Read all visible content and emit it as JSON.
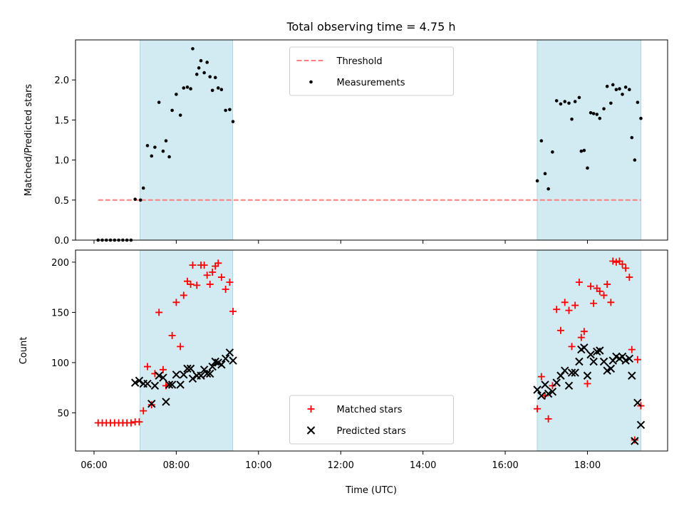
{
  "figure": {
    "title": "Total observing time = 4.75 h",
    "xlabel": "Time (UTC)",
    "xticks": [
      {
        "value": 6,
        "label": "06:00"
      },
      {
        "value": 8,
        "label": "08:00"
      },
      {
        "value": 10,
        "label": "10:00"
      },
      {
        "value": 12,
        "label": "12:00"
      },
      {
        "value": 14,
        "label": "14:00"
      },
      {
        "value": 16,
        "label": "16:00"
      },
      {
        "value": 18,
        "label": "18:00"
      }
    ],
    "xlim": [
      5.55,
      19.95
    ],
    "shaded_intervals": [
      [
        7.12,
        9.37
      ],
      [
        16.78,
        19.3
      ]
    ],
    "shade_color": "#add8e6"
  },
  "chart_data": [
    {
      "type": "scatter",
      "ylabel": "Matched/Predicted stars",
      "ylim": [
        0,
        2.5
      ],
      "yticks": [
        {
          "value": 0,
          "label": "0.0"
        },
        {
          "value": 0.5,
          "label": "0.5"
        },
        {
          "value": 1,
          "label": "1.0"
        },
        {
          "value": 1.5,
          "label": "1.5"
        },
        {
          "value": 2,
          "label": "2.0"
        }
      ],
      "legend_position": "top-center",
      "threshold": {
        "name": "Threshold",
        "value": 0.5,
        "x": [
          6.1,
          19.3
        ],
        "color": "#ff7f7f"
      },
      "series": [
        {
          "name": "Measurements",
          "color": "#000000",
          "marker": "dot",
          "points": [
            [
              6.1,
              0
            ],
            [
              6.2,
              0
            ],
            [
              6.3,
              0
            ],
            [
              6.4,
              0
            ],
            [
              6.5,
              0
            ],
            [
              6.6,
              0
            ],
            [
              6.7,
              0
            ],
            [
              6.8,
              0
            ],
            [
              6.9,
              0
            ],
            [
              7.0,
              0.51
            ],
            [
              7.13,
              0.5
            ],
            [
              7.2,
              0.65
            ],
            [
              7.3,
              1.18
            ],
            [
              7.4,
              1.05
            ],
            [
              7.48,
              1.16
            ],
            [
              7.58,
              1.72
            ],
            [
              7.68,
              1.11
            ],
            [
              7.75,
              1.24
            ],
            [
              7.83,
              1.04
            ],
            [
              7.9,
              1.62
            ],
            [
              8.0,
              1.82
            ],
            [
              8.1,
              1.56
            ],
            [
              8.18,
              1.9
            ],
            [
              8.27,
              1.91
            ],
            [
              8.35,
              1.89
            ],
            [
              8.4,
              2.39
            ],
            [
              8.5,
              2.07
            ],
            [
              8.55,
              2.15
            ],
            [
              8.6,
              2.24
            ],
            [
              8.68,
              2.09
            ],
            [
              8.75,
              2.22
            ],
            [
              8.82,
              2.04
            ],
            [
              8.88,
              1.87
            ],
            [
              8.95,
              2.03
            ],
            [
              9.02,
              1.9
            ],
            [
              9.1,
              1.88
            ],
            [
              9.2,
              1.62
            ],
            [
              9.3,
              1.63
            ],
            [
              9.38,
              1.48
            ],
            [
              16.78,
              0.74
            ],
            [
              16.88,
              1.24
            ],
            [
              16.97,
              0.83
            ],
            [
              17.05,
              0.64
            ],
            [
              17.15,
              1.1
            ],
            [
              17.25,
              1.74
            ],
            [
              17.35,
              1.7
            ],
            [
              17.45,
              1.73
            ],
            [
              17.55,
              1.71
            ],
            [
              17.62,
              1.51
            ],
            [
              17.7,
              1.73
            ],
            [
              17.8,
              1.78
            ],
            [
              17.85,
              1.11
            ],
            [
              17.92,
              1.12
            ],
            [
              18.0,
              0.9
            ],
            [
              18.08,
              1.59
            ],
            [
              18.15,
              1.58
            ],
            [
              18.23,
              1.57
            ],
            [
              18.3,
              1.52
            ],
            [
              18.4,
              1.64
            ],
            [
              18.48,
              1.92
            ],
            [
              18.57,
              1.71
            ],
            [
              18.62,
              1.94
            ],
            [
              18.7,
              1.88
            ],
            [
              18.78,
              1.89
            ],
            [
              18.85,
              1.82
            ],
            [
              18.93,
              1.91
            ],
            [
              19.02,
              1.88
            ],
            [
              19.08,
              1.28
            ],
            [
              19.15,
              1.0
            ],
            [
              19.22,
              1.72
            ],
            [
              19.3,
              1.52
            ]
          ]
        }
      ]
    },
    {
      "type": "scatter",
      "ylabel": "Count",
      "ylim": [
        12,
        212
      ],
      "yticks": [
        {
          "value": 50,
          "label": "50"
        },
        {
          "value": 100,
          "label": "100"
        },
        {
          "value": 150,
          "label": "150"
        },
        {
          "value": 200,
          "label": "200"
        }
      ],
      "legend_position": "bottom-center",
      "series": [
        {
          "name": "Matched stars",
          "color": "#ff0000",
          "marker": "plus",
          "points": [
            [
              6.1,
              40
            ],
            [
              6.2,
              40
            ],
            [
              6.3,
              40
            ],
            [
              6.4,
              40
            ],
            [
              6.5,
              40
            ],
            [
              6.6,
              40
            ],
            [
              6.7,
              40
            ],
            [
              6.8,
              40
            ],
            [
              6.9,
              40
            ],
            [
              7.0,
              41
            ],
            [
              7.1,
              41
            ],
            [
              7.2,
              52
            ],
            [
              7.3,
              96
            ],
            [
              7.4,
              58
            ],
            [
              7.48,
              89
            ],
            [
              7.58,
              150
            ],
            [
              7.68,
              93
            ],
            [
              7.75,
              77
            ],
            [
              7.83,
              78
            ],
            [
              7.9,
              127
            ],
            [
              8.0,
              160
            ],
            [
              8.1,
              116
            ],
            [
              8.18,
              167
            ],
            [
              8.27,
              181
            ],
            [
              8.35,
              178
            ],
            [
              8.4,
              197
            ],
            [
              8.5,
              177
            ],
            [
              8.6,
              197
            ],
            [
              8.68,
              197
            ],
            [
              8.75,
              187
            ],
            [
              8.82,
              178
            ],
            [
              8.88,
              190
            ],
            [
              8.95,
              196
            ],
            [
              9.02,
              199
            ],
            [
              9.1,
              185
            ],
            [
              9.2,
              173
            ],
            [
              9.3,
              180
            ],
            [
              9.38,
              151
            ],
            [
              16.78,
              54
            ],
            [
              16.88,
              86
            ],
            [
              16.97,
              67
            ],
            [
              17.05,
              44
            ],
            [
              17.15,
              77
            ],
            [
              17.25,
              153
            ],
            [
              17.35,
              132
            ],
            [
              17.45,
              160
            ],
            [
              17.55,
              152
            ],
            [
              17.62,
              116
            ],
            [
              17.7,
              157
            ],
            [
              17.8,
              180
            ],
            [
              17.85,
              125
            ],
            [
              17.92,
              131
            ],
            [
              18.0,
              79
            ],
            [
              18.08,
              176
            ],
            [
              18.15,
              159
            ],
            [
              18.23,
              174
            ],
            [
              18.3,
              171
            ],
            [
              18.4,
              167
            ],
            [
              18.48,
              178
            ],
            [
              18.57,
              160
            ],
            [
              18.62,
              201
            ],
            [
              18.7,
              200
            ],
            [
              18.78,
              201
            ],
            [
              18.85,
              198
            ],
            [
              18.93,
              194
            ],
            [
              19.02,
              185
            ],
            [
              19.08,
              113
            ],
            [
              19.15,
              23
            ],
            [
              19.22,
              103
            ],
            [
              19.3,
              57
            ]
          ]
        },
        {
          "name": "Predicted stars",
          "color": "#000000",
          "marker": "x",
          "points": [
            [
              7.0,
              80
            ],
            [
              7.1,
              82
            ],
            [
              7.2,
              79
            ],
            [
              7.3,
              79
            ],
            [
              7.4,
              59
            ],
            [
              7.48,
              77
            ],
            [
              7.58,
              87
            ],
            [
              7.68,
              85
            ],
            [
              7.75,
              61
            ],
            [
              7.83,
              78
            ],
            [
              7.9,
              78
            ],
            [
              8.0,
              88
            ],
            [
              8.1,
              78
            ],
            [
              8.18,
              88
            ],
            [
              8.27,
              94
            ],
            [
              8.35,
              94
            ],
            [
              8.4,
              84
            ],
            [
              8.5,
              87
            ],
            [
              8.6,
              87
            ],
            [
              8.68,
              93
            ],
            [
              8.75,
              89
            ],
            [
              8.82,
              89
            ],
            [
              8.88,
              96
            ],
            [
              8.95,
              101
            ],
            [
              9.02,
              100
            ],
            [
              9.1,
              98
            ],
            [
              9.2,
              104
            ],
            [
              9.3,
              110
            ],
            [
              9.38,
              102
            ],
            [
              16.78,
              73
            ],
            [
              16.88,
              67
            ],
            [
              16.97,
              78
            ],
            [
              17.05,
              69
            ],
            [
              17.15,
              71
            ],
            [
              17.25,
              80
            ],
            [
              17.35,
              87
            ],
            [
              17.45,
              92
            ],
            [
              17.55,
              77
            ],
            [
              17.62,
              90
            ],
            [
              17.7,
              90
            ],
            [
              17.8,
              101
            ],
            [
              17.85,
              113
            ],
            [
              17.92,
              115
            ],
            [
              18.0,
              87
            ],
            [
              18.08,
              108
            ],
            [
              18.15,
              101
            ],
            [
              18.23,
              111
            ],
            [
              18.3,
              112
            ],
            [
              18.4,
              101
            ],
            [
              18.48,
              92
            ],
            [
              18.57,
              94
            ],
            [
              18.62,
              102
            ],
            [
              18.7,
              106
            ],
            [
              18.78,
              104
            ],
            [
              18.85,
              106
            ],
            [
              18.93,
              102
            ],
            [
              19.02,
              104
            ],
            [
              19.08,
              87
            ],
            [
              19.15,
              22
            ],
            [
              19.22,
              60
            ],
            [
              19.3,
              38
            ]
          ]
        }
      ]
    }
  ]
}
